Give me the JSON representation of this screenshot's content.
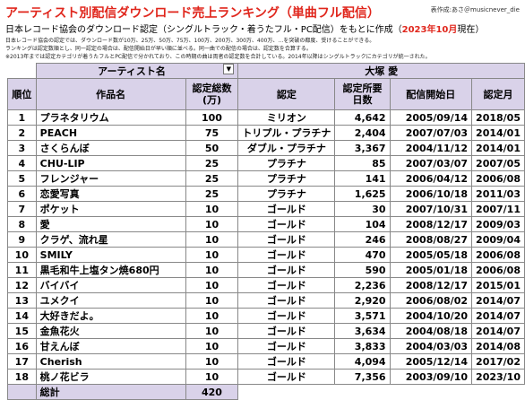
{
  "header": {
    "title": "アーティスト別配信ダウンロード売上ランキング（単曲フル配信）",
    "credit": "表作成:あさ＠musicnever_die",
    "subtitle_pre": "日本レコード協会のダウンロード認定（シングルトラック・着うたフル・PC配信）をもとに作成（",
    "subtitle_date": "2023年10月",
    "subtitle_post": "現在）",
    "notes": [
      "日本レコード協会の認定では、ダウンロード数が10万、25万、50万、75万、100万、200万、300万、400万、…を突破の都度、受けることができる。",
      "ランキングは認定数順とし、同一認定の場合は、配信開始日が早い順に並べる。同一曲での配信の場合は、認定数を合算する。",
      "※2013年までは認定カテゴリが着うたフルとPC配信で分かれており、この時期の曲は両者の認定数を合計している。2014年以降はシングルトラックにカテゴリが統一された。"
    ]
  },
  "filter": {
    "label": "アーティスト名",
    "value": "大塚 愛"
  },
  "table": {
    "columns": [
      "順位",
      "作品名",
      "認定総数\n(万)",
      "認定",
      "認定所要\n日数",
      "配信開始日",
      "認定月"
    ],
    "rows": [
      [
        "1",
        "プラネタリウム",
        "100",
        "ミリオン",
        "4,642",
        "2005/09/14",
        "2018/05"
      ],
      [
        "2",
        "PEACH",
        "75",
        "トリプル・プラチナ",
        "2,404",
        "2007/07/03",
        "2014/01"
      ],
      [
        "3",
        "さくらんぼ",
        "50",
        "ダブル・プラチナ",
        "3,367",
        "2004/11/12",
        "2014/01"
      ],
      [
        "4",
        "CHU-LIP",
        "25",
        "プラチナ",
        "85",
        "2007/03/07",
        "2007/05"
      ],
      [
        "5",
        "フレンジャー",
        "25",
        "プラチナ",
        "141",
        "2006/04/12",
        "2006/08"
      ],
      [
        "6",
        "恋愛写真",
        "25",
        "プラチナ",
        "1,625",
        "2006/10/18",
        "2011/03"
      ],
      [
        "7",
        "ポケット",
        "10",
        "ゴールド",
        "30",
        "2007/10/31",
        "2007/11"
      ],
      [
        "8",
        "愛",
        "10",
        "ゴールド",
        "104",
        "2008/12/17",
        "2009/03"
      ],
      [
        "9",
        "クラゲ、流れ星",
        "10",
        "ゴールド",
        "246",
        "2008/08/27",
        "2009/04"
      ],
      [
        "10",
        "SMILY",
        "10",
        "ゴールド",
        "470",
        "2005/05/18",
        "2006/08"
      ],
      [
        "11",
        "黒毛和牛上塩タン焼680円",
        "10",
        "ゴールド",
        "590",
        "2005/01/18",
        "2006/08"
      ],
      [
        "12",
        "バイバイ",
        "10",
        "ゴールド",
        "2,236",
        "2008/12/17",
        "2015/01"
      ],
      [
        "13",
        "ユメクイ",
        "10",
        "ゴールド",
        "2,920",
        "2006/08/02",
        "2014/07"
      ],
      [
        "14",
        "大好きだよ。",
        "10",
        "ゴールド",
        "3,571",
        "2004/10/20",
        "2014/07"
      ],
      [
        "15",
        "金魚花火",
        "10",
        "ゴールド",
        "3,634",
        "2004/08/18",
        "2014/07"
      ],
      [
        "16",
        "甘えんぼ",
        "10",
        "ゴールド",
        "3,833",
        "2004/03/03",
        "2014/08"
      ],
      [
        "17",
        "Cherish",
        "10",
        "ゴールド",
        "4,094",
        "2005/12/14",
        "2017/02"
      ],
      [
        "18",
        "桃ノ花ビラ",
        "10",
        "ゴールド",
        "7,356",
        "2003/09/10",
        "2023/10"
      ]
    ],
    "total_label": "総計",
    "total_value": "420"
  }
}
